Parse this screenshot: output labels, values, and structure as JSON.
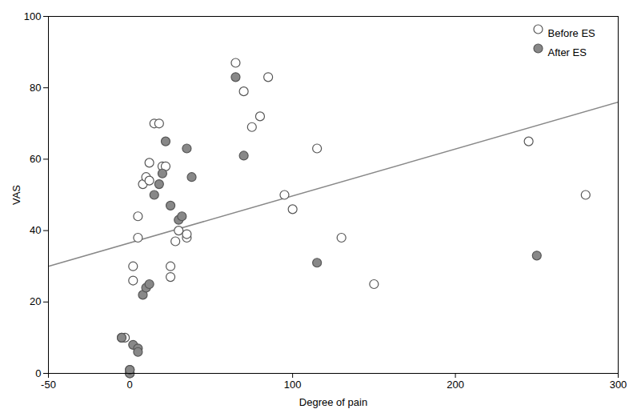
{
  "chart_data": {
    "type": "scatter",
    "xlabel": "Degree of pain",
    "ylabel": "VAS",
    "xlim": [
      -50,
      300
    ],
    "ylim": [
      0,
      100
    ],
    "xticks": [
      -50,
      0,
      100,
      200,
      300
    ],
    "yticks": [
      0,
      20,
      40,
      60,
      80,
      100
    ],
    "grid": false,
    "legend": "upper right",
    "series": [
      {
        "name": "Before ES",
        "type": "scatter",
        "marker": "circle",
        "color": "white",
        "x": [
          -5,
          -3,
          0,
          0,
          2,
          2,
          5,
          5,
          8,
          10,
          12,
          12,
          15,
          18,
          20,
          22,
          25,
          25,
          28,
          30,
          35,
          35,
          65,
          70,
          75,
          80,
          85,
          95,
          100,
          115,
          130,
          150,
          245,
          280
        ],
        "values": [
          10,
          10,
          0,
          1,
          30,
          26,
          38,
          44,
          53,
          55,
          54,
          59,
          70,
          70,
          58,
          58,
          30,
          27,
          37,
          40,
          38,
          39,
          87,
          79,
          69,
          72,
          83,
          50,
          46,
          63,
          38,
          25,
          65,
          50
        ]
      },
      {
        "name": "After ES",
        "type": "scatter",
        "marker": "circle",
        "color": "#888888",
        "x": [
          -5,
          0,
          0,
          2,
          5,
          5,
          8,
          10,
          12,
          15,
          18,
          20,
          22,
          25,
          30,
          32,
          35,
          38,
          65,
          70,
          115,
          250
        ],
        "values": [
          10,
          0,
          1,
          8,
          7,
          6,
          22,
          24,
          25,
          50,
          53,
          56,
          65,
          47,
          43,
          44,
          63,
          55,
          83,
          61,
          31,
          33
        ]
      },
      {
        "type": "line",
        "line_style": "solid",
        "color": "#888888",
        "x": [
          -50,
          300
        ],
        "values": [
          30,
          76
        ]
      }
    ]
  }
}
